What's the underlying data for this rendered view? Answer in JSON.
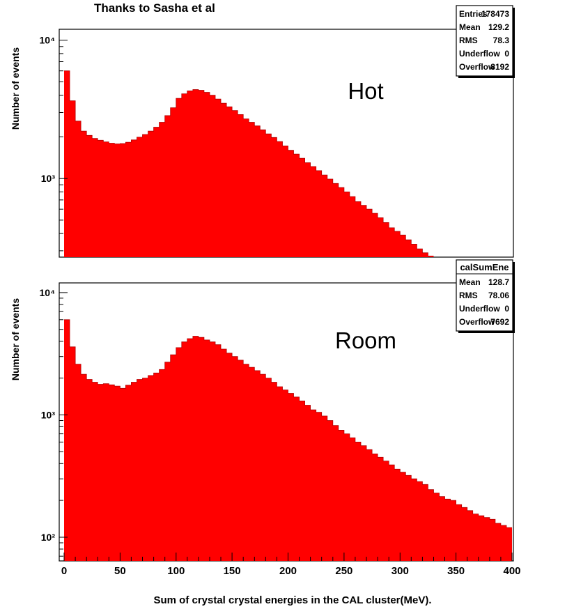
{
  "credit": "Thanks to Sasha et al",
  "colors": {
    "fill": "#ff0000",
    "frame": "#000000",
    "background": "#ffffff"
  },
  "chart_data": [
    {
      "type": "bar",
      "label": "Hot",
      "ylabel": "Number of events",
      "xlabel": "",
      "y_scale": "log",
      "ylim": [
        270,
        12000
      ],
      "xlim": [
        0,
        400
      ],
      "bin_width": 5,
      "y_ticks": [
        {
          "value": 1000,
          "label": "10³"
        },
        {
          "value": 10000,
          "label": "10⁴"
        }
      ],
      "x_ticks": [],
      "x": [
        0,
        5,
        10,
        15,
        20,
        25,
        30,
        35,
        40,
        45,
        50,
        55,
        60,
        65,
        70,
        75,
        80,
        85,
        90,
        95,
        100,
        105,
        110,
        115,
        120,
        125,
        130,
        135,
        140,
        145,
        150,
        155,
        160,
        165,
        170,
        175,
        180,
        185,
        190,
        195,
        200,
        205,
        210,
        215,
        220,
        225,
        230,
        235,
        240,
        245,
        250,
        255,
        260,
        265,
        270,
        275,
        280,
        285,
        290,
        295,
        300,
        305,
        310,
        315,
        320,
        325
      ],
      "values": [
        6000,
        3650,
        2600,
        2200,
        2050,
        1950,
        1890,
        1840,
        1800,
        1780,
        1790,
        1830,
        1900,
        1990,
        2080,
        2200,
        2350,
        2550,
        2850,
        3250,
        3800,
        4100,
        4300,
        4400,
        4350,
        4200,
        4000,
        3750,
        3500,
        3300,
        3100,
        2900,
        2700,
        2550,
        2400,
        2250,
        2100,
        1980,
        1850,
        1720,
        1600,
        1500,
        1400,
        1300,
        1220,
        1140,
        1060,
        990,
        920,
        860,
        800,
        740,
        680,
        640,
        600,
        560,
        520,
        480,
        440,
        415,
        390,
        360,
        335,
        310,
        290,
        275
      ],
      "stats_box": {
        "title": "",
        "rows": [
          {
            "name": "Entries",
            "value": "178473"
          },
          {
            "name": "Mean",
            "value": "129.2"
          },
          {
            "name": "RMS",
            "value": "78.3"
          },
          {
            "name": "Underflow",
            "value": "0"
          },
          {
            "name": "Overflow",
            "value": "8192"
          }
        ]
      }
    },
    {
      "type": "bar",
      "label": "Room",
      "ylabel": "Number of events",
      "xlabel": "Sum of crystal crystal energies in the CAL cluster(MeV).",
      "y_scale": "log",
      "ylim": [
        64,
        12000
      ],
      "xlim": [
        0,
        400
      ],
      "bin_width": 5,
      "y_ticks": [
        {
          "value": 100,
          "label": "10²"
        },
        {
          "value": 1000,
          "label": "10³"
        },
        {
          "value": 10000,
          "label": "10⁴"
        }
      ],
      "x_ticks": [
        0,
        50,
        100,
        150,
        200,
        250,
        300,
        350,
        400
      ],
      "x": [
        0,
        5,
        10,
        15,
        20,
        25,
        30,
        35,
        40,
        45,
        50,
        55,
        60,
        65,
        70,
        75,
        80,
        85,
        90,
        95,
        100,
        105,
        110,
        115,
        120,
        125,
        130,
        135,
        140,
        145,
        150,
        155,
        160,
        165,
        170,
        175,
        180,
        185,
        190,
        195,
        200,
        205,
        210,
        215,
        220,
        225,
        230,
        235,
        240,
        245,
        250,
        255,
        260,
        265,
        270,
        275,
        280,
        285,
        290,
        295,
        300,
        305,
        310,
        315,
        320,
        325,
        330,
        335,
        340,
        345,
        350,
        355,
        360,
        365,
        370,
        375,
        380,
        385,
        390,
        395
      ],
      "values": [
        6000,
        3600,
        2600,
        2150,
        1950,
        1850,
        1780,
        1800,
        1760,
        1720,
        1650,
        1750,
        1850,
        1950,
        2000,
        2100,
        2200,
        2350,
        2700,
        3100,
        3550,
        3950,
        4200,
        4400,
        4300,
        4100,
        3950,
        3750,
        3450,
        3200,
        3000,
        2800,
        2600,
        2450,
        2300,
        2150,
        2000,
        1850,
        1700,
        1600,
        1500,
        1400,
        1300,
        1200,
        1100,
        1050,
        980,
        900,
        820,
        750,
        700,
        650,
        600,
        560,
        520,
        480,
        450,
        420,
        390,
        360,
        340,
        320,
        300,
        285,
        270,
        245,
        230,
        215,
        205,
        200,
        185,
        175,
        165,
        155,
        150,
        145,
        140,
        130,
        125,
        120
      ],
      "stats_box": {
        "title": "calSumEne",
        "rows": [
          {
            "name": "Mean",
            "value": "128.7"
          },
          {
            "name": "RMS",
            "value": "78.06"
          },
          {
            "name": "Underflow",
            "value": "0"
          },
          {
            "name": "Overflow",
            "value": "7692"
          }
        ]
      }
    }
  ]
}
